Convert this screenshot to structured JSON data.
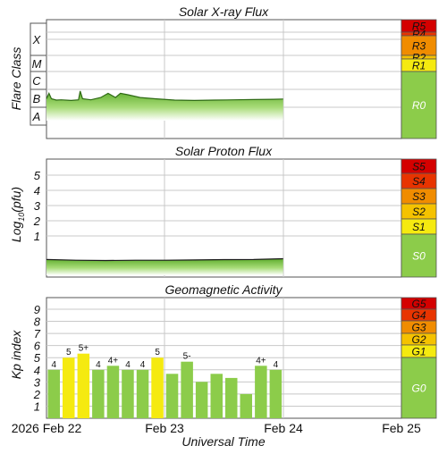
{
  "panels": {
    "xray": {
      "title": "Solar X-ray Flux",
      "ylabel": "Flare Class"
    },
    "proton": {
      "title": "Solar Proton Flux",
      "ylabel": "Log10(pfu)",
      "ylabel_base": "Log",
      "ylabel_sub": "10",
      "ylabel_rest": "(pfu)"
    },
    "kp": {
      "title": "Geomagnetic Activity",
      "ylabel": "Kp index"
    }
  },
  "xaxis": {
    "label": "Universal Time",
    "ticks": [
      "2026 Feb 22",
      "Feb 23",
      "Feb 24",
      "Feb 25"
    ]
  },
  "scales": {
    "xray": [
      {
        "label": "R5",
        "color": "#d40000"
      },
      {
        "label": "R4",
        "color": "#e83400"
      },
      {
        "label": "R3",
        "color": "#f08c00"
      },
      {
        "label": "R2",
        "color": "#f5c200"
      },
      {
        "label": "R1",
        "color": "#f5ea10"
      },
      {
        "label": "R0",
        "color": "#8ccc4a"
      }
    ],
    "proton": [
      {
        "label": "S5",
        "color": "#d40000"
      },
      {
        "label": "S4",
        "color": "#e83400"
      },
      {
        "label": "S3",
        "color": "#f08c00"
      },
      {
        "label": "S2",
        "color": "#f5c200"
      },
      {
        "label": "S1",
        "color": "#f5ea10"
      },
      {
        "label": "S0",
        "color": "#8ccc4a"
      }
    ],
    "kp": [
      {
        "label": "G5",
        "color": "#d40000"
      },
      {
        "label": "G4",
        "color": "#e83400"
      },
      {
        "label": "G3",
        "color": "#f08c00"
      },
      {
        "label": "G2",
        "color": "#f5c200"
      },
      {
        "label": "G1",
        "color": "#f5ea10"
      },
      {
        "label": "G0",
        "color": "#8ccc4a"
      }
    ]
  },
  "chart_data": [
    {
      "type": "area",
      "title": "Solar X-ray Flux",
      "ylabel": "Flare Class",
      "y_scale": "log",
      "y_tick_labels": [
        "A",
        "B",
        "C",
        "M",
        "X"
      ],
      "x_range": [
        "2026-02-22",
        "2026-02-25"
      ],
      "series": [
        {
          "x": [
            "2026-02-22 00:00",
            "2026-02-22 00:30",
            "2026-02-22 01:00",
            "2026-02-22 02:00",
            "2026-02-22 03:00",
            "2026-02-22 05:00",
            "2026-02-22 06:30",
            "2026-02-22 06:50",
            "2026-02-22 07:20",
            "2026-02-22 09:00",
            "2026-02-22 11:00",
            "2026-02-22 12:30",
            "2026-02-22 14:00",
            "2026-02-22 15:00",
            "2026-02-22 16:30",
            "2026-02-22 19:00",
            "2026-02-22 22:00",
            "2026-02-23 02:00",
            "2026-02-23 06:00",
            "2026-02-23 10:00",
            "2026-02-23 14:00",
            "2026-02-23 18:00",
            "2026-02-23 22:00",
            "2026-02-24 00:00"
          ],
          "values": [
            "B3.0",
            "B6.0",
            "B3.0",
            "B2.5",
            "B2.6",
            "B2.4",
            "B2.6",
            "B8.0",
            "B3.0",
            "B2.6",
            "B3.5",
            "B6.0",
            "B3.5",
            "B6.0",
            "B5.0",
            "B3.5",
            "B3.0",
            "B2.5",
            "B2.4",
            "B2.5",
            "B2.6",
            "B2.7",
            "B2.8",
            "B2.9"
          ]
        }
      ]
    },
    {
      "type": "area",
      "title": "Solar Proton Flux",
      "ylabel": "Log10(pfu)",
      "y_ticks": [
        1,
        2,
        3,
        4,
        5
      ],
      "x_range": [
        "2026-02-22",
        "2026-02-25"
      ],
      "series": [
        {
          "x": [
            "2026-02-22 00:00",
            "2026-02-22 06:00",
            "2026-02-22 12:00",
            "2026-02-22 18:00",
            "2026-02-23 00:00",
            "2026-02-23 06:00",
            "2026-02-23 12:00",
            "2026-02-23 18:00",
            "2026-02-24 00:00"
          ],
          "values": [
            -0.55,
            -0.6,
            -0.62,
            -0.6,
            -0.6,
            -0.58,
            -0.56,
            -0.55,
            -0.5
          ]
        }
      ]
    },
    {
      "type": "bar",
      "title": "Geomagnetic Activity",
      "ylabel": "Kp index",
      "y_ticks": [
        1,
        2,
        3,
        4,
        5,
        6,
        7,
        8,
        9
      ],
      "ylim": [
        0,
        9
      ],
      "x_range": [
        "2026-02-22",
        "2026-02-25"
      ],
      "series": [
        {
          "name": "Kp",
          "x": [
            "2026-02-22 00:00",
            "2026-02-22 03:00",
            "2026-02-22 06:00",
            "2026-02-22 09:00",
            "2026-02-22 12:00",
            "2026-02-22 15:00",
            "2026-02-22 18:00",
            "2026-02-22 21:00",
            "2026-02-23 00:00",
            "2026-02-23 03:00",
            "2026-02-23 06:00",
            "2026-02-23 09:00",
            "2026-02-23 12:00",
            "2026-02-23 15:00",
            "2026-02-23 18:00",
            "2026-02-23 21:00"
          ],
          "values": [
            4.0,
            5.0,
            5.33,
            4.0,
            4.33,
            4.0,
            4.0,
            5.0,
            3.67,
            4.67,
            3.0,
            3.67,
            3.33,
            2.0,
            4.33,
            4.0
          ],
          "labels": [
            "4",
            "5",
            "5+",
            "4",
            "4+",
            "4",
            "4",
            "5",
            "",
            "5-",
            "",
            "",
            "",
            "",
            "4+",
            "4"
          ],
          "colors": [
            "#8ccc4a",
            "#f5ea10",
            "#f5ea10",
            "#8ccc4a",
            "#8ccc4a",
            "#8ccc4a",
            "#8ccc4a",
            "#f5ea10",
            "#8ccc4a",
            "#8ccc4a",
            "#8ccc4a",
            "#8ccc4a",
            "#8ccc4a",
            "#8ccc4a",
            "#8ccc4a",
            "#8ccc4a"
          ]
        }
      ]
    }
  ]
}
